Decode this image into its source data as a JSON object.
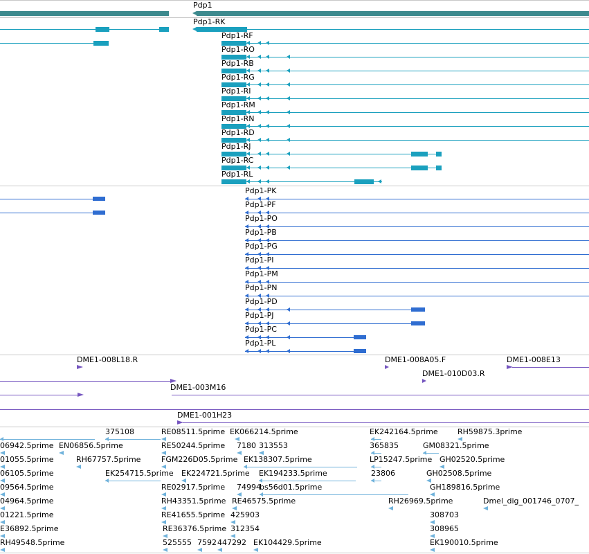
{
  "colors": {
    "gene": "#3d8a8e",
    "transcript": "#1aa0be",
    "protein": "#2f6dd1",
    "clone": "#7555bf",
    "est": "#6fb2db",
    "separator": "#c8c8c8"
  },
  "gene_track": {
    "gene_label": "Pdp1"
  },
  "transcript_track": {
    "labels": [
      "Pdp1-RK",
      "Pdp1-RF",
      "Pdp1-RO",
      "Pdp1-RB",
      "Pdp1-RG",
      "Pdp1-RI",
      "Pdp1-RM",
      "Pdp1-RN",
      "Pdp1-RD",
      "Pdp1-RJ",
      "Pdp1-RC",
      "Pdp1-RL"
    ]
  },
  "protein_track": {
    "labels": [
      "Pdp1-PK",
      "Pdp1-PF",
      "Pdp1-PO",
      "Pdp1-PB",
      "Pdp1-PG",
      "Pdp1-PI",
      "Pdp1-PM",
      "Pdp1-PN",
      "Pdp1-PD",
      "Pdp1-PJ",
      "Pdp1-PC",
      "Pdp1-PL"
    ]
  },
  "clone_track": {
    "labels": [
      "DME1-008L18.R",
      "DME1-008A05.F",
      "DME1-008E13",
      "DME1-010D03.R",
      "DME1-003M16",
      "DME1-001H23"
    ]
  },
  "est_track": {
    "labels": [
      "375108",
      "RE08511.5prime",
      "EK066214.5prime",
      "EK242164.5prime",
      "RH59875.3prime",
      "06942.5prime",
      "EN06856.5prime",
      "RE50244.5prime",
      "7180",
      "313553",
      "365835",
      "GM08321.5prime",
      "01055.5prime",
      "RH67757.5prime",
      "FGM226D05.5prime",
      "EK138307.5prime",
      "LP15247.5prime",
      "GH02520.5prime",
      "06105.5prime",
      "EK254715.5prime",
      "EK224721.5prime",
      "EK194233.5prime",
      "23806",
      "GH02508.5prime",
      "09564.5prime",
      "RE02917.5prime",
      "74994",
      "bs56d01.5prime",
      "GH189816.5prime",
      "04964.5prime",
      "RH43351.5prime",
      "RE46575.5prime",
      "RH26969.5prime",
      "Dmel_dig_001746_0707_",
      "01221.5prime",
      "RE41655.5prime",
      "425903",
      "308703",
      "E36892.5prime",
      "RE36376.5prime",
      "312354",
      "308965",
      "RH49548.5prime",
      "525555",
      "7592",
      "447292",
      "EK104429.5prime",
      "EK190010.5prime"
    ]
  }
}
